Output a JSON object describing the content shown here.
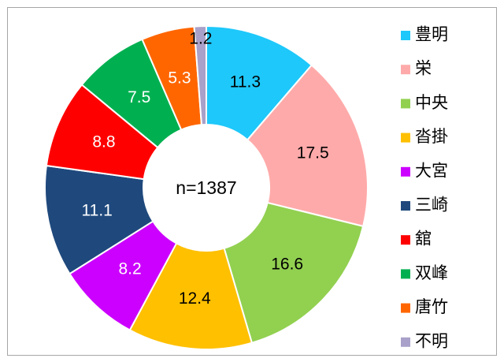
{
  "chart_data": {
    "type": "donut",
    "center_label": "n=1387",
    "categories": [
      "豊明",
      "栄",
      "中央",
      "沓掛",
      "大宮",
      "三崎",
      "舘",
      "双峰",
      "唐竹",
      "不明"
    ],
    "values": [
      11.3,
      17.5,
      16.6,
      12.4,
      8.2,
      11.1,
      8.8,
      7.5,
      5.3,
      1.2
    ],
    "colors": [
      "#1ec8fa",
      "#ffaaaa",
      "#92d050",
      "#ffc000",
      "#cc00ff",
      "#1f497d",
      "#ff0000",
      "#00b050",
      "#ff6600",
      "#a9a1c9"
    ],
    "legend": "right"
  }
}
